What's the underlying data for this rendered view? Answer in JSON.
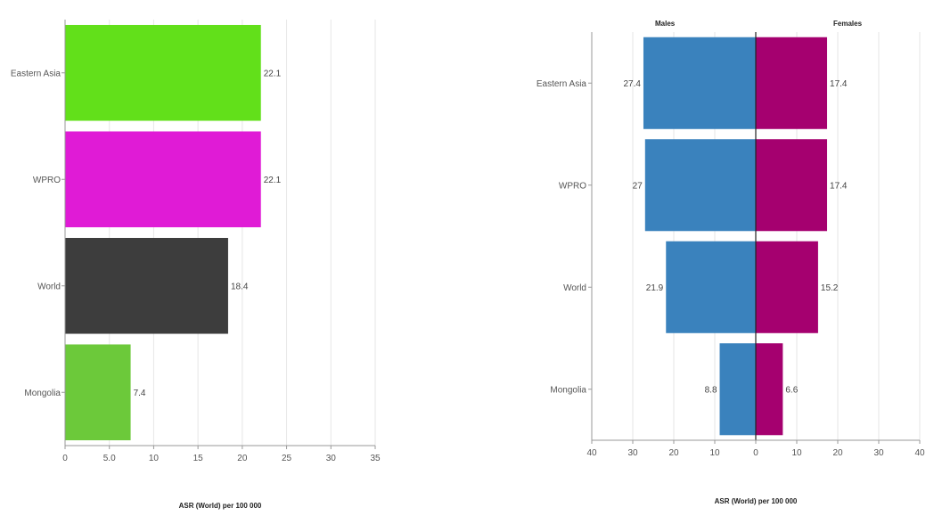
{
  "chart_data": [
    {
      "type": "bar",
      "orientation": "horizontal",
      "categories": [
        "Eastern Asia",
        "WPRO",
        "World",
        "Mongolia"
      ],
      "values": [
        22.1,
        22.1,
        18.4,
        7.4
      ],
      "value_labels": [
        "22.1",
        "22.1",
        "18.4",
        "7.4"
      ],
      "colors": [
        "#62e01a",
        "#e01bd6",
        "#3d3d3d",
        "#6cc93a"
      ],
      "x_ticks": [
        "0",
        "5.0",
        "10",
        "15",
        "20",
        "25",
        "30",
        "35"
      ],
      "xlabel": "ASR (World) per 100 000",
      "xlim": [
        0,
        35
      ],
      "grid": "vertical"
    },
    {
      "type": "bar",
      "orientation": "horizontal-diverging",
      "categories": [
        "Eastern Asia",
        "WPRO",
        "World",
        "Mongolia"
      ],
      "series": [
        {
          "name": "Males",
          "values": [
            27.4,
            27.0,
            21.9,
            8.8
          ],
          "labels": [
            "27.4",
            "27",
            "21.9",
            "8.8"
          ],
          "color": "#3a82bd"
        },
        {
          "name": "Females",
          "values": [
            17.4,
            17.4,
            15.2,
            6.6
          ],
          "labels": [
            "17.4",
            "17.4",
            "15.2",
            "6.6"
          ],
          "color": "#a5006f"
        }
      ],
      "x_ticks": [
        "40",
        "30",
        "20",
        "10",
        "0",
        "10",
        "20",
        "30",
        "40"
      ],
      "xlabel": "ASR (World) per 100 000",
      "xlim": [
        -40,
        40
      ],
      "grid": "vertical"
    }
  ]
}
